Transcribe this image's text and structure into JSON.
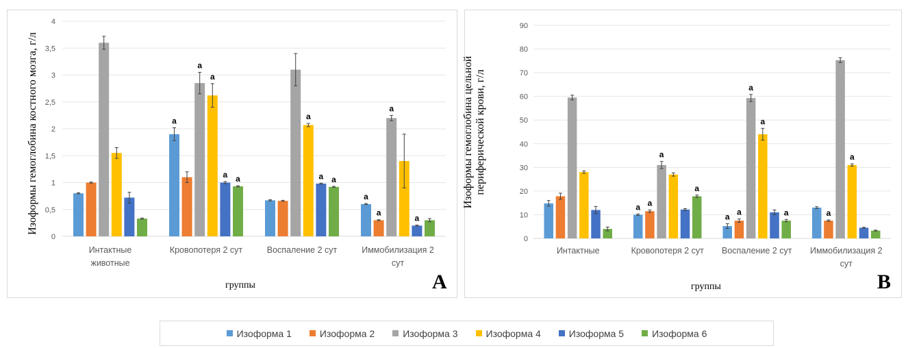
{
  "legend": {
    "items": [
      "Изоформа 1",
      "Изоформа 2",
      "Изоформа 3",
      "Изоформа 4",
      "Изоформа 5",
      "Изоформа 6"
    ],
    "colors": [
      "#5b9bd5",
      "#ed7d31",
      "#a5a5a5",
      "#ffc000",
      "#4472c4",
      "#70ad47"
    ]
  },
  "chart_data": [
    {
      "type": "bar",
      "panel_letter": "A",
      "ylabel": "Изоформы гемоглобина костного мозга, г/л",
      "xlabel": "группы",
      "categories": [
        [
          "Интактные",
          "животные"
        ],
        [
          "Кровопотеря 2 сут"
        ],
        [
          "Воспаление 2 сут"
        ],
        [
          "Иммобилизация 2",
          "сут"
        ]
      ],
      "ylim": [
        0,
        4
      ],
      "ticks": [
        "0",
        "0,5",
        "1",
        "1,5",
        "2",
        "2,5",
        "3",
        "3,5",
        "4"
      ],
      "tick_values": [
        0,
        0.5,
        1,
        1.5,
        2,
        2.5,
        3,
        3.5,
        4
      ],
      "series": [
        {
          "name": "Изоформа 1",
          "values": [
            0.8,
            1.9,
            0.67,
            0.6
          ],
          "errors": [
            0.01,
            0.12,
            0.01,
            0.01
          ]
        },
        {
          "name": "Изоформа 2",
          "values": [
            1.0,
            1.1,
            0.66,
            0.3
          ],
          "errors": [
            0.01,
            0.1,
            0.01,
            0.01
          ]
        },
        {
          "name": "Изоформа 3",
          "values": [
            3.6,
            2.85,
            3.1,
            2.2
          ],
          "errors": [
            0.12,
            0.2,
            0.3,
            0.05
          ]
        },
        {
          "name": "Изоформа 4",
          "values": [
            1.55,
            2.62,
            2.07,
            1.4
          ],
          "errors": [
            0.1,
            0.22,
            0.03,
            0.5
          ]
        },
        {
          "name": "Изоформа 5",
          "values": [
            0.72,
            1.0,
            0.98,
            0.2
          ],
          "errors": [
            0.1,
            0.02,
            0.01,
            0.01
          ]
        },
        {
          "name": "Изоформа 6",
          "values": [
            0.33,
            0.93,
            0.92,
            0.3
          ],
          "errors": [
            0.01,
            0.01,
            0.01,
            0.03
          ]
        }
      ],
      "annotation_symbol": "a",
      "annotations": [
        {
          "category": 1,
          "series": 0
        },
        {
          "category": 1,
          "series": 2
        },
        {
          "category": 1,
          "series": 3
        },
        {
          "category": 1,
          "series": 4
        },
        {
          "category": 1,
          "series": 5
        },
        {
          "category": 2,
          "series": 3
        },
        {
          "category": 2,
          "series": 4
        },
        {
          "category": 2,
          "series": 5
        },
        {
          "category": 3,
          "series": 0
        },
        {
          "category": 3,
          "series": 1
        },
        {
          "category": 3,
          "series": 2
        },
        {
          "category": 3,
          "series": 4
        }
      ]
    },
    {
      "type": "bar",
      "panel_letter": "B",
      "ylabel": "Изоформы гемоглобина цельной периферической крови, г/л",
      "xlabel": "группы",
      "categories": [
        [
          "Интактные"
        ],
        [
          "Кровопотеря 2 сут"
        ],
        [
          "Воспаление 2 сут"
        ],
        [
          "Иммобилизация 2",
          "сут"
        ]
      ],
      "ylim": [
        0,
        90
      ],
      "ticks": [
        "0",
        "10",
        "20",
        "30",
        "40",
        "50",
        "60",
        "70",
        "80",
        "90"
      ],
      "tick_values": [
        0,
        10,
        20,
        30,
        40,
        50,
        60,
        70,
        80,
        90
      ],
      "series": [
        {
          "name": "Изоформа 1",
          "values": [
            14.8,
            10.0,
            5.2,
            13.0
          ],
          "errors": [
            1.2,
            0.3,
            1.0,
            0.4
          ]
        },
        {
          "name": "Изоформа 2",
          "values": [
            17.8,
            11.5,
            7.5,
            7.5
          ],
          "errors": [
            1.3,
            0.5,
            0.7,
            0.3
          ]
        },
        {
          "name": "Изоформа 3",
          "values": [
            59.5,
            31.0,
            59.3,
            75.3
          ],
          "errors": [
            1.0,
            1.5,
            1.5,
            1.0
          ]
        },
        {
          "name": "Изоформа 4",
          "values": [
            28.0,
            27.0,
            44.0,
            31.0
          ],
          "errors": [
            0.5,
            0.7,
            2.5,
            0.5
          ]
        },
        {
          "name": "Изоформа 5",
          "values": [
            12.0,
            12.2,
            11.0,
            4.5
          ],
          "errors": [
            1.5,
            0.4,
            1.0,
            0.2
          ]
        },
        {
          "name": "Изоформа 6",
          "values": [
            4.0,
            17.8,
            7.5,
            3.3
          ],
          "errors": [
            0.8,
            0.5,
            0.5,
            0.2
          ]
        }
      ],
      "annotation_symbol": "a",
      "annotations": [
        {
          "category": 1,
          "series": 0
        },
        {
          "category": 1,
          "series": 1
        },
        {
          "category": 1,
          "series": 2
        },
        {
          "category": 1,
          "series": 5
        },
        {
          "category": 2,
          "series": 0
        },
        {
          "category": 2,
          "series": 1
        },
        {
          "category": 2,
          "series": 2
        },
        {
          "category": 2,
          "series": 3
        },
        {
          "category": 2,
          "series": 5
        },
        {
          "category": 3,
          "series": 1
        },
        {
          "category": 3,
          "series": 3
        }
      ]
    }
  ]
}
